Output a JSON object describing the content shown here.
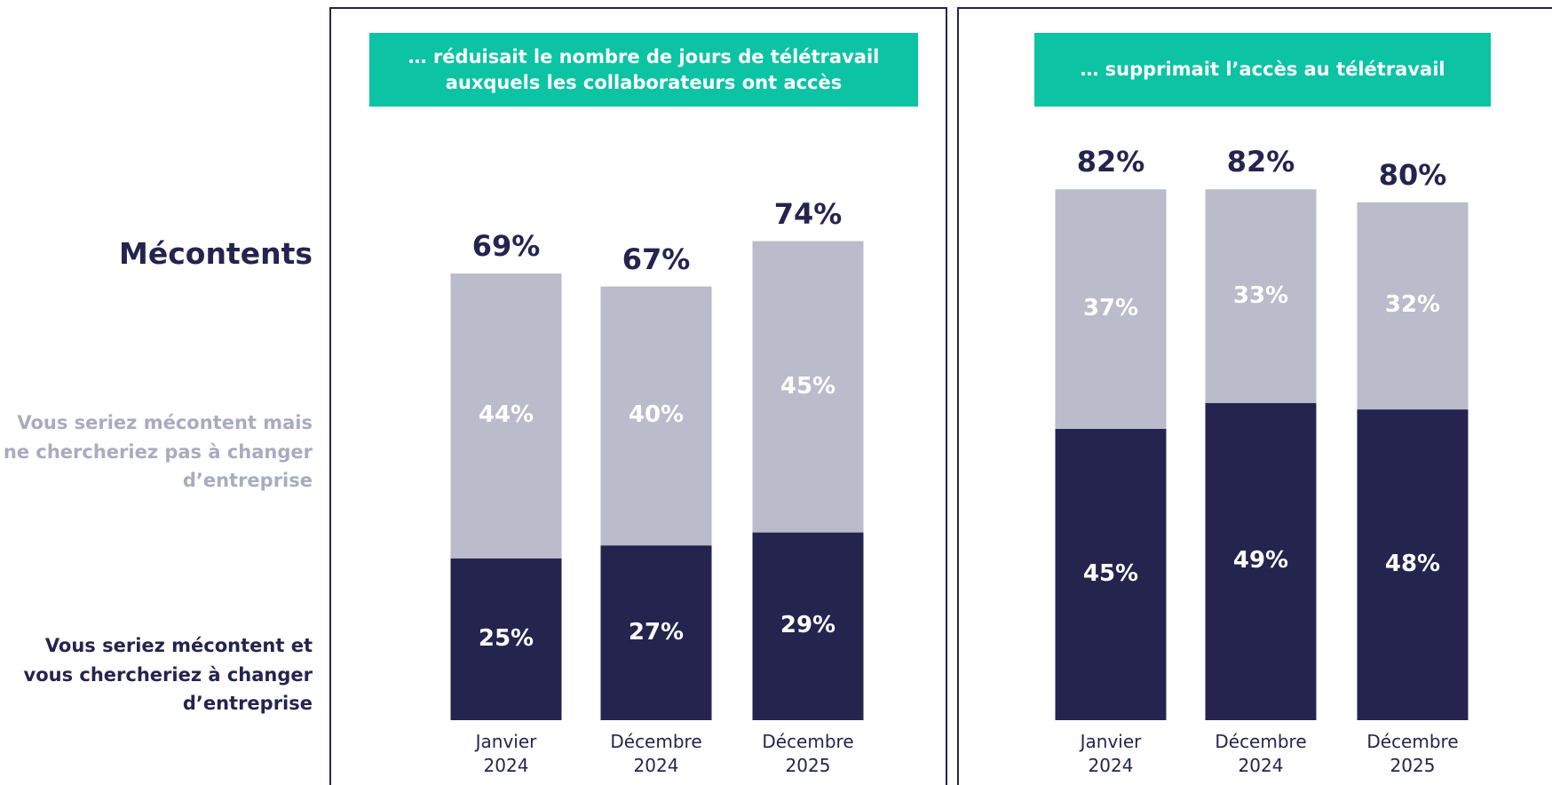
{
  "chart_data": [
    {
      "type": "stacked_bar",
      "title": "… réduisait le nombre de jours de télétravail auxquels les collaborateurs ont accès",
      "total_name": "Mécontents",
      "categories": [
        "Janvier 2024",
        "Décembre 2024",
        "Décembre 2025"
      ],
      "ylim": [
        0,
        100
      ],
      "series": [
        {
          "name": "Vous seriez mécontent et vous chercheriez à changer d’entreprise",
          "color": "#24244f",
          "values": [
            25,
            27,
            29
          ],
          "value_labels": [
            "25%",
            "27%",
            "29%"
          ]
        },
        {
          "name": "Vous seriez mécontent mais ne chercheriez pas à changer d’entreprise",
          "color": "#babbcb",
          "values": [
            44,
            40,
            45
          ],
          "value_labels": [
            "44%",
            "40%",
            "45%"
          ]
        }
      ],
      "totals": [
        69,
        67,
        74
      ],
      "total_labels": [
        "69%",
        "67%",
        "74%"
      ]
    },
    {
      "type": "stacked_bar",
      "title": "… supprimait l’accès au télétravail",
      "categories": [
        "Janvier 2024",
        "Décembre 2024",
        "Décembre 2025"
      ],
      "ylim": [
        0,
        100
      ],
      "series": [
        {
          "name": "Vous seriez mécontent et vous chercheriez à changer d’entreprise",
          "color": "#24244f",
          "values": [
            45,
            49,
            48
          ],
          "value_labels": [
            "45%",
            "49%",
            "48%"
          ]
        },
        {
          "name": "Vous seriez mécontent mais ne chercheriez pas à changer d’entreprise",
          "color": "#babbcb",
          "values": [
            37,
            33,
            32
          ],
          "value_labels": [
            "37%",
            "33%",
            "32%"
          ]
        }
      ],
      "totals": [
        82,
        82,
        80
      ],
      "total_labels": [
        "82%",
        "82%",
        "80%"
      ]
    }
  ]
}
